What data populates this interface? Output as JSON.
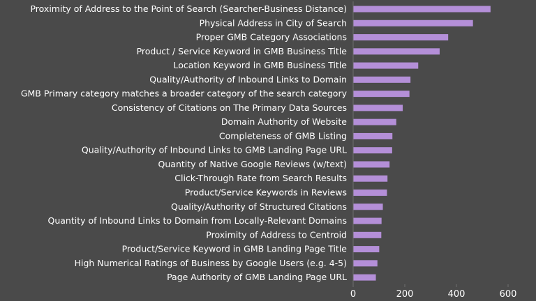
{
  "chart_data": {
    "type": "bar",
    "orientation": "horizontal",
    "title": "",
    "xlabel": "",
    "ylabel": "",
    "xlim": [
      0,
      600
    ],
    "xticks": [
      "0",
      "200",
      "400",
      "600"
    ],
    "bar_color": "#b48fd8",
    "background_color": "#4a4a4a",
    "grid": false,
    "categories": [
      "Proximity of Address to the Point of Search (Searcher-Business Distance)",
      "Physical Address in City of Search",
      "Proper GMB Category Associations",
      "Product / Service Keyword in GMB Business Title",
      "Location Keyword in GMB Business Title",
      "Quality/Authority of Inbound Links to Domain",
      "GMB Primary category matches a broader category of the search category",
      "Consistency of Citations on The Primary Data Sources",
      "Domain Authority of Website",
      "Completeness of GMB Listing",
      "Quality/Authority of Inbound Links to GMB Landing Page URL",
      "Quantity of Native Google Reviews (w/text)",
      "Click-Through Rate from Search Results",
      "Product/Service Keywords in Reviews",
      "Quality/Authority of Structured Citations",
      "Quantity of Inbound Links to Domain from Locally-Relevant Domains",
      "Proximity of Address to Centroid",
      "Product/Service Keyword in GMB Landing Page Title",
      "High Numerical Ratings of Business by Google Users (e.g. 4-5)",
      "Page Authority of GMB Landing Page URL"
    ],
    "values": [
      532,
      464,
      368,
      335,
      252,
      222,
      218,
      192,
      167,
      152,
      151,
      141,
      133,
      131,
      115,
      110,
      109,
      101,
      94,
      88
    ]
  }
}
